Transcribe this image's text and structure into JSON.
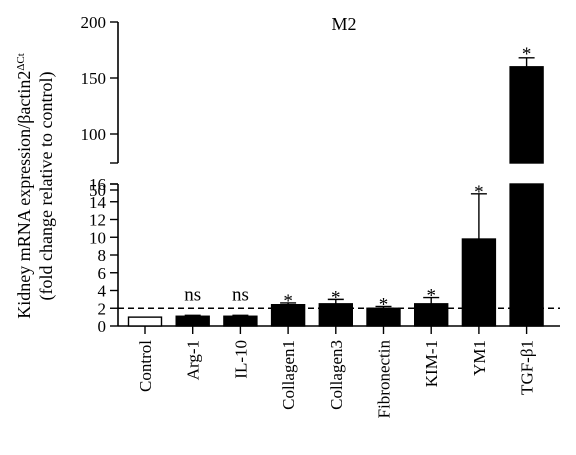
{
  "chart_data": {
    "type": "bar",
    "title": "M2",
    "ylabel_line1": "Kidney mRNA expression/βactin2",
    "ylabel_sup": "ΔCt",
    "ylabel_line2": "(fold change relative to control)",
    "categories": [
      "Control",
      "Arg-1",
      "IL-10",
      "Collagen1",
      "Collagen3",
      "Fibronectin",
      "KIM-1",
      "YM1",
      "TGF-β1"
    ],
    "values": [
      1.0,
      1.1,
      1.1,
      2.4,
      2.5,
      2.0,
      2.5,
      9.8,
      160
    ],
    "errors": [
      0,
      0.1,
      0.1,
      0.2,
      0.5,
      0.2,
      0.7,
      5.1,
      8
    ],
    "annotations": [
      "",
      "ns",
      "ns",
      "*",
      "*",
      "*",
      "*",
      "*",
      "*"
    ],
    "bar_fills": [
      "#ffffff",
      "#000000",
      "#000000",
      "#000000",
      "#000000",
      "#000000",
      "#000000",
      "#000000",
      "#000000"
    ],
    "reference_line": 2,
    "axis_break": true,
    "lower_ylim": [
      0,
      16
    ],
    "lower_ticks": [
      "0",
      "2",
      "4",
      "6",
      "8",
      "10",
      "12",
      "14",
      "16"
    ],
    "upper_ylim": [
      0,
      200
    ],
    "upper_ticks": [
      "50",
      "100",
      "150",
      "200"
    ]
  }
}
